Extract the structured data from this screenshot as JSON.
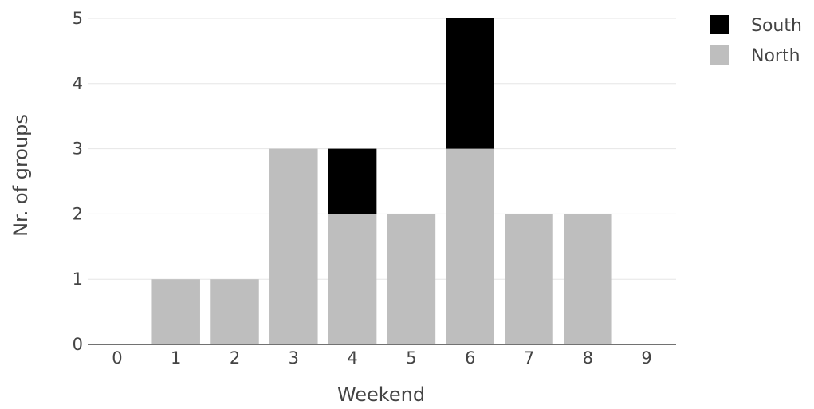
{
  "chart_data": {
    "type": "bar",
    "stacked": true,
    "title": "",
    "xlabel": "Weekend",
    "ylabel": "Nr. of groups",
    "categories": [
      "0",
      "1",
      "2",
      "3",
      "4",
      "5",
      "6",
      "7",
      "8",
      "9"
    ],
    "series": [
      {
        "name": "North",
        "color": "#bebebe",
        "values": [
          0,
          1,
          1,
          3,
          2,
          2,
          3,
          2,
          2,
          0
        ]
      },
      {
        "name": "South",
        "color": "#000000",
        "values": [
          0,
          0,
          0,
          0,
          1,
          0,
          2,
          0,
          0,
          0
        ]
      }
    ],
    "y_ticks": [
      "0",
      "1",
      "2",
      "3",
      "4",
      "5"
    ],
    "ylim": [
      0,
      5
    ],
    "grid": true,
    "legend_position": "top-right",
    "legend_order": [
      "South",
      "North"
    ]
  }
}
